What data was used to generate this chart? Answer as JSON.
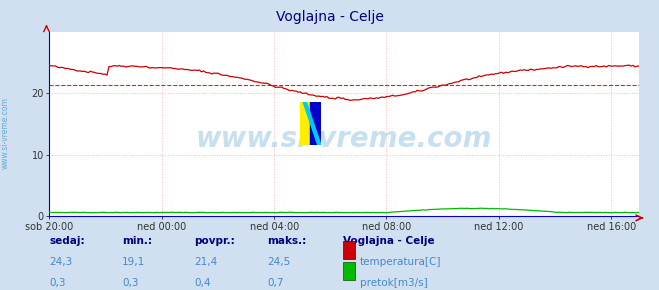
{
  "title": "Voglajna - Celje",
  "title_color": "#000080",
  "bg_color": "#d0e0f0",
  "plot_bg_color": "#ffffff",
  "grid_color": "#ffbbbb",
  "grid_style": ":",
  "x_labels": [
    "sob 20:00",
    "ned 00:00",
    "ned 04:00",
    "ned 08:00",
    "ned 12:00",
    "ned 16:00"
  ],
  "x_ticks_norm": [
    0.0,
    0.1905,
    0.381,
    0.5714,
    0.7619,
    0.9524
  ],
  "y_ticks": [
    0,
    10,
    20
  ],
  "ylim": [
    0,
    30
  ],
  "avg_line_value": 21.4,
  "avg_line_color": "#cc0000",
  "avg_line_style": "--",
  "temp_color": "#cc0000",
  "flow_color": "#00bb00",
  "blue_spine_color": "#0000cc",
  "watermark_text": "www.si-vreme.com",
  "watermark_color": "#4499cc",
  "watermark_alpha": 0.3,
  "watermark_fontsize": 20,
  "sidebar_text": "www.si-vreme.com",
  "sidebar_color": "#4499cc",
  "legend_title": "Voglajna - Celje",
  "legend_title_color": "#000080",
  "footer_labels": [
    "sedaj:",
    "min.:",
    "povpr.:",
    "maks.:"
  ],
  "footer_values_temp": [
    "24,3",
    "19,1",
    "21,4",
    "24,5"
  ],
  "footer_values_flow": [
    "0,3",
    "0,3",
    "0,4",
    "0,7"
  ],
  "footer_color": "#4488cc",
  "footer_bold_color": "#000080",
  "n_points": 288,
  "temp_ylim_max": 30.0,
  "flow_ylim_max": 2.0,
  "flow_display_scale": 0.9
}
